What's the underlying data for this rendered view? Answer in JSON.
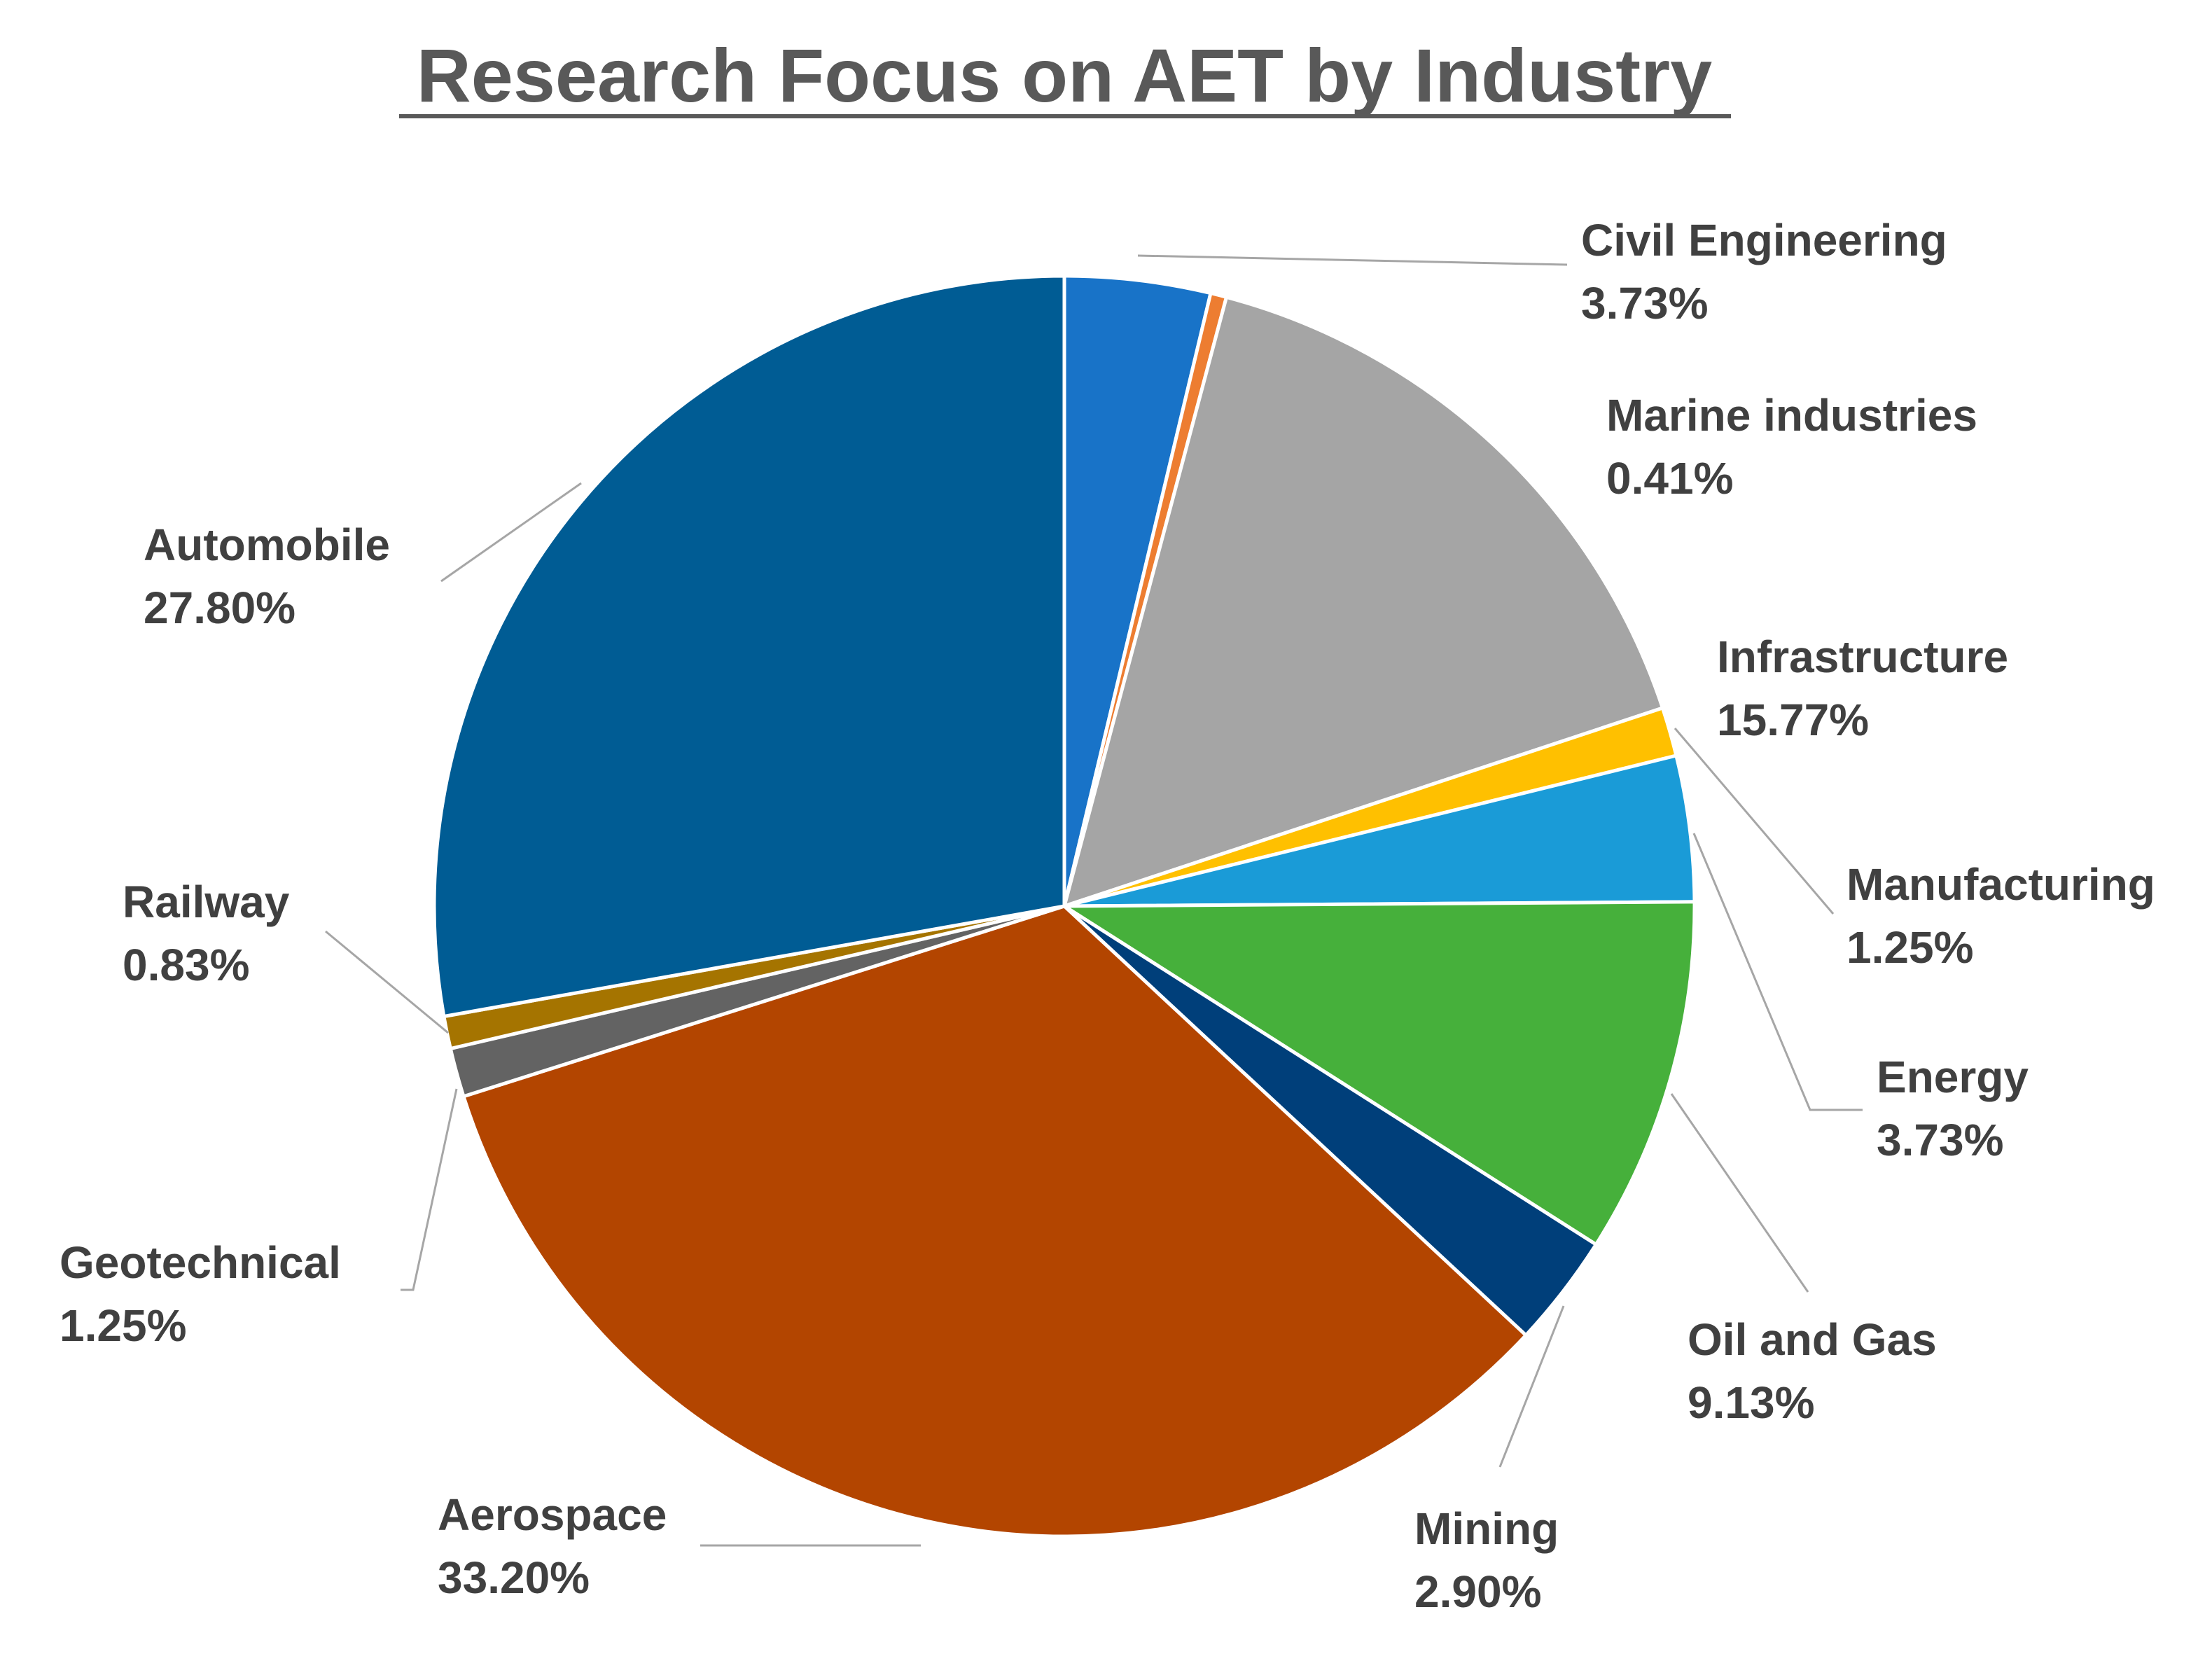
{
  "chart_data": {
    "type": "pie",
    "title": "Research Focus on AET by Industry",
    "slices": [
      {
        "label": "Civil Engineering",
        "value_text": "3.73%",
        "value": 3.73,
        "color": "#1873C8"
      },
      {
        "label": "Marine industries",
        "value_text": "0.41%",
        "value": 0.41,
        "color": "#ED7D31"
      },
      {
        "label": "Infrastructure",
        "value_text": "15.77%",
        "value": 15.77,
        "color": "#A5A5A5"
      },
      {
        "label": "Manufacturing",
        "value_text": "1.25%",
        "value": 1.25,
        "color": "#FFC000"
      },
      {
        "label": "Energy",
        "value_text": "3.73%",
        "value": 3.73,
        "color": "#1A9BD7"
      },
      {
        "label": "Oil and Gas",
        "value_text": "9.13%",
        "value": 9.13,
        "color": "#46B03B"
      },
      {
        "label": "Mining",
        "value_text": "2.90%",
        "value": 2.9,
        "color": "#003F7A"
      },
      {
        "label": "Aerospace",
        "value_text": "33.20%",
        "value": 33.2,
        "color": "#B34500"
      },
      {
        "label": "Geotechnical",
        "value_text": "1.25%",
        "value": 1.25,
        "color": "#636363"
      },
      {
        "label": "Railway",
        "value_text": "0.83%",
        "value": 0.83,
        "color": "#A57400"
      },
      {
        "label": "Automobile",
        "value_text": "27.80%",
        "value": 27.8,
        "color": "#005C94"
      }
    ],
    "legend": "none",
    "data_labels": "outside-with-leader-lines"
  }
}
